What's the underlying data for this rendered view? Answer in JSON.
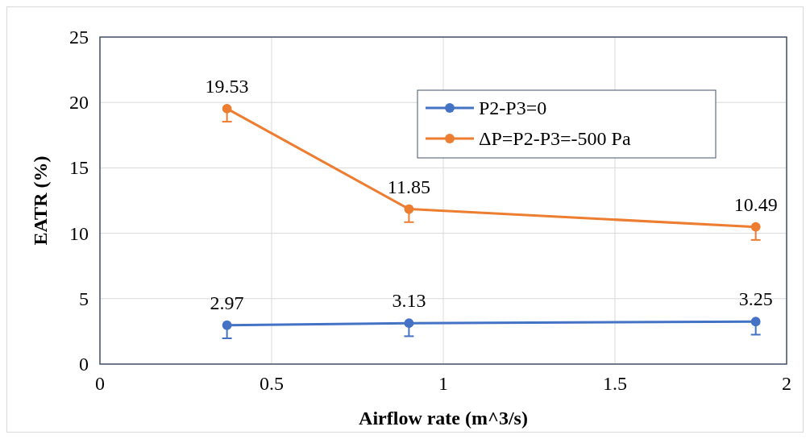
{
  "chart_data": {
    "type": "line",
    "xlabel": "Airflow rate (m^3/s)",
    "ylabel": "EATR (%)",
    "x": [
      0.37,
      0.9,
      1.91
    ],
    "series": [
      {
        "name": "P2-P3=0",
        "color": "#4472c4",
        "values": [
          2.97,
          3.13,
          3.25
        ],
        "errors": [
          [
            1.97,
            2.97
          ],
          [
            2.13,
            3.13
          ],
          [
            2.25,
            3.25
          ]
        ]
      },
      {
        "name": "ΔP=P2-P3=-500 Pa",
        "color": "#ed7d31",
        "values": [
          19.53,
          11.85,
          10.49
        ],
        "errors": [
          [
            18.53,
            19.53
          ],
          [
            10.85,
            11.85
          ],
          [
            9.49,
            10.49
          ]
        ]
      }
    ],
    "xlim": [
      0,
      2
    ],
    "xticks": [
      0,
      0.5,
      1,
      1.5,
      2
    ],
    "ylim": [
      0,
      25
    ],
    "yticks": [
      0,
      5,
      10,
      15,
      20,
      25
    ],
    "grid": true,
    "legend": "top right",
    "marker": "circle",
    "line_style": "solid",
    "data_labels": true
  }
}
